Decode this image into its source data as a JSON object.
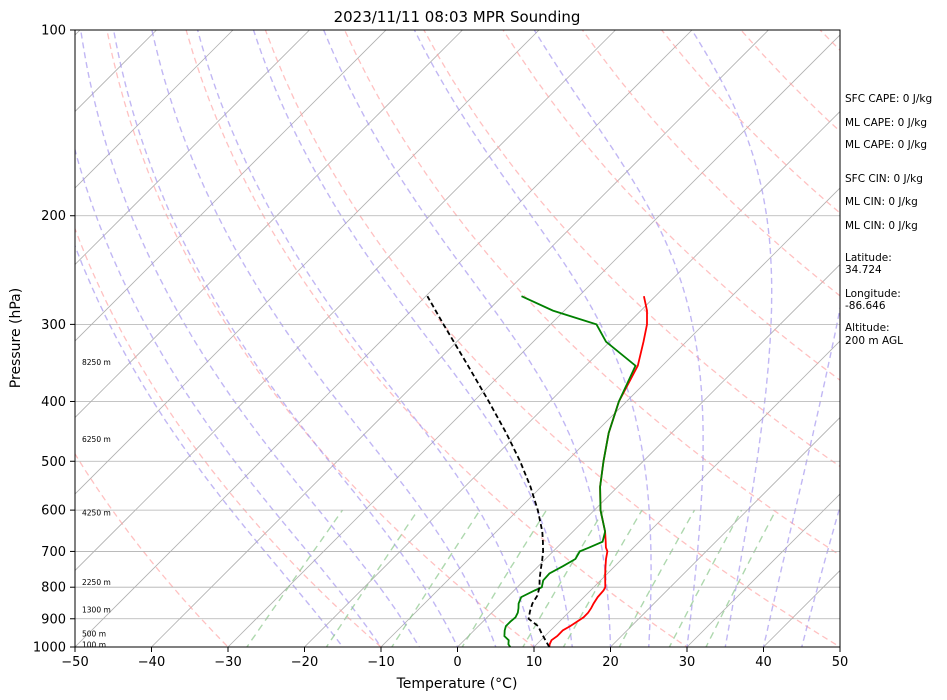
{
  "chart_data": {
    "type": "line",
    "title": "2023/11/11 08:03 MPR Sounding",
    "xlabel": "Temperature (°C)",
    "ylabel": "Pressure (hPa)",
    "xlim": [
      -50,
      50
    ],
    "ylim": [
      1000,
      100
    ],
    "y_scale": "log",
    "x_ticks": [
      "−50",
      "−40",
      "−30",
      "−20",
      "−10",
      "0",
      "10",
      "20",
      "30",
      "40",
      "50"
    ],
    "x_tick_values": [
      -50,
      -40,
      -30,
      -20,
      -10,
      0,
      10,
      20,
      30,
      40,
      50
    ],
    "y_tick_values": [
      100,
      200,
      300,
      400,
      500,
      600,
      700,
      800,
      900,
      1000
    ],
    "y_ticks": [
      "100",
      "200",
      "300",
      "400",
      "500",
      "600",
      "700",
      "800",
      "900",
      "1000"
    ],
    "grid": true,
    "skew": "skew-T",
    "series": [
      {
        "role": "temperature",
        "color": "#ff0000",
        "pressure": [
          1000,
          990,
          975,
          960,
          940,
          925,
          910,
          895,
          880,
          865,
          850,
          830,
          810,
          800,
          780,
          760,
          740,
          720,
          700,
          690,
          675,
          650,
          600,
          550,
          500,
          450,
          400,
          350,
          320,
          300,
          285,
          270
        ],
        "temperature": [
          12.0,
          11.7,
          11.4,
          11.6,
          11.6,
          12.0,
          12.3,
          12.6,
          12.6,
          12.4,
          12.1,
          11.8,
          11.7,
          11.5,
          10.6,
          9.7,
          8.8,
          7.9,
          7.1,
          6.4,
          5.6,
          4.2,
          0.8,
          -2.3,
          -5.2,
          -8.2,
          -11.0,
          -13.2,
          -15.6,
          -17.4,
          -19.2,
          -21.5
        ]
      },
      {
        "role": "dewpoint",
        "color": "#008000",
        "pressure": [
          1000,
          990,
          975,
          960,
          940,
          925,
          910,
          895,
          880,
          865,
          850,
          830,
          810,
          800,
          780,
          760,
          740,
          720,
          700,
          690,
          675,
          650,
          600,
          550,
          500,
          450,
          400,
          350,
          320,
          300,
          285,
          270
        ],
        "dewpoint": [
          6.9,
          6.3,
          5.8,
          4.7,
          4.0,
          3.6,
          3.6,
          3.7,
          3.4,
          2.9,
          2.3,
          1.8,
          2.7,
          3.2,
          2.5,
          2.4,
          3.2,
          3.9,
          3.5,
          4.2,
          5.2,
          4.2,
          0.8,
          -2.3,
          -5.2,
          -8.2,
          -11.0,
          -13.5,
          -20.5,
          -24.0,
          -31.5,
          -37.5
        ]
      },
      {
        "role": "parcel",
        "color": "#000000",
        "style": "dashed",
        "pressure": [
          1000,
          975,
          950,
          925,
          900,
          875,
          850,
          825,
          800,
          775,
          750,
          725,
          700,
          675,
          650,
          600,
          550,
          500,
          450,
          400,
          350,
          300,
          270
        ],
        "temperature": [
          12.0,
          10.6,
          9.2,
          7.8,
          5.6,
          4.8,
          4.1,
          3.7,
          2.9,
          1.8,
          0.8,
          -0.2,
          -1.3,
          -2.6,
          -4.0,
          -7.4,
          -11.4,
          -16.1,
          -21.6,
          -28.0,
          -35.4,
          -44.0,
          -49.8
        ]
      }
    ],
    "height_labels": [
      "100 m",
      "500 m",
      "1300 m",
      "2250 m",
      "4250 m",
      "6250 m",
      "8250 m"
    ],
    "height_label_pressures": [
      990,
      950,
      870,
      785,
      605,
      460,
      345
    ],
    "dry_adiabat_thetas_c": [
      -30,
      -10,
      10,
      30,
      50,
      70,
      90,
      110,
      130,
      150,
      170,
      190,
      210
    ],
    "moist_adiabat_thetas_c": [
      -15,
      -10,
      -5,
      0,
      5,
      10,
      15,
      20,
      25,
      30,
      35,
      40,
      45
    ],
    "mixing_ratio_g_per_kg": [
      0.4,
      1,
      2,
      4,
      7,
      10,
      16,
      24,
      32
    ],
    "isotherm_values_c": [
      -160,
      -150,
      -140,
      -130,
      -120,
      -110,
      -100,
      -90,
      -80,
      -70,
      -60,
      -50,
      -40,
      -30,
      -20,
      -10,
      0,
      10,
      20,
      30,
      40,
      50
    ]
  },
  "info_panel": [
    "SFC CAPE: 0 J/kg",
    "ML CAPE: 0 J/kg",
    "ML CAPE: 0 J/kg",
    "SFC CIN: 0 J/kg",
    "ML CIN: 0 J/kg",
    "ML CIN: 0 J/kg",
    "Latitude:",
    "34.724",
    "Longitude:",
    "-86.646",
    "Altitude:",
    "200 m AGL"
  ],
  "colors": {
    "isotherm": "#b0b0b0",
    "dry_adiabat": "#ffa0a0",
    "moist_adiabat": "#a090ee",
    "mixing_ratio": "#8cc88c"
  }
}
